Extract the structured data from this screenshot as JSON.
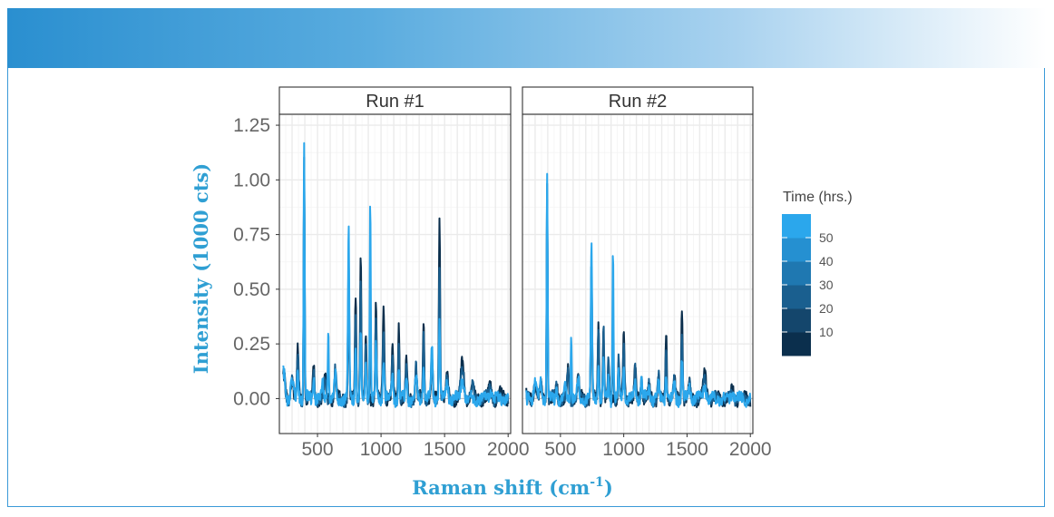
{
  "chart_data": {
    "type": "line",
    "title": "",
    "xlabel_main": "Raman shift (cm",
    "xlabel_sup": "-1",
    "xlabel_close": ")",
    "ylabel": "Intensity (1000 cts)",
    "xlim": [
      200,
      2020
    ],
    "ylim": [
      -0.16,
      1.3
    ],
    "x_ticks": [
      500,
      1000,
      1500,
      2000
    ],
    "x_tick_labels": [
      "500",
      "1000",
      "1500",
      "2000"
    ],
    "y_ticks": [
      0.0,
      0.25,
      0.5,
      0.75,
      1.0,
      1.25
    ],
    "y_tick_labels": [
      "0.00",
      "0.25",
      "0.50",
      "0.75",
      "1.00",
      "1.25"
    ],
    "legend": {
      "title": "Time (hrs.)",
      "placement": "right",
      "range": [
        0,
        60
      ],
      "breaks": [
        10,
        20,
        30,
        40,
        50
      ],
      "break_labels": [
        "10",
        "20",
        "30",
        "40",
        "50"
      ],
      "colors": [
        "#0b2f4d",
        "#14466c",
        "#1a5f8f",
        "#1f78b1",
        "#2590d1",
        "#2ba7ec"
      ]
    },
    "panels": [
      {
        "name": "Run #1",
        "series": [
          {
            "time": 5,
            "color": "#0b2f4d",
            "peaks": [
              [
                235,
                0.18,
                8
              ],
              [
                300,
                0.1,
                10
              ],
              [
                345,
                0.22,
                6
              ],
              [
                395,
                1.05,
                4
              ],
              [
                470,
                0.15,
                6
              ],
              [
                560,
                0.1,
                7
              ],
              [
                640,
                0.14,
                7
              ],
              [
                745,
                0.55,
                5
              ],
              [
                800,
                0.47,
                5
              ],
              [
                840,
                0.66,
                5
              ],
              [
                880,
                0.28,
                5
              ],
              [
                960,
                0.45,
                5
              ],
              [
                1020,
                0.43,
                6
              ],
              [
                1090,
                0.22,
                6
              ],
              [
                1140,
                0.34,
                5
              ],
              [
                1200,
                0.18,
                6
              ],
              [
                1275,
                0.15,
                6
              ],
              [
                1335,
                0.37,
                5
              ],
              [
                1400,
                0.14,
                6
              ],
              [
                1460,
                0.82,
                5
              ],
              [
                1520,
                0.1,
                8
              ],
              [
                1640,
                0.16,
                12
              ],
              [
                1720,
                0.05,
                10
              ],
              [
                1860,
                0.06,
                10
              ],
              [
                1940,
                0.03,
                10
              ]
            ]
          },
          {
            "time": 25,
            "color": "#1a5f8f",
            "peaks": [
              [
                235,
                0.17,
                8
              ],
              [
                300,
                0.09,
                10
              ],
              [
                345,
                0.18,
                6
              ],
              [
                395,
                1.1,
                4
              ],
              [
                470,
                0.14,
                6
              ],
              [
                560,
                0.09,
                7
              ],
              [
                640,
                0.13,
                7
              ],
              [
                745,
                0.62,
                5
              ],
              [
                800,
                0.4,
                5
              ],
              [
                840,
                0.52,
                5
              ],
              [
                880,
                0.24,
                5
              ],
              [
                915,
                0.4,
                4
              ],
              [
                960,
                0.36,
                5
              ],
              [
                1020,
                0.32,
                6
              ],
              [
                1090,
                0.18,
                6
              ],
              [
                1140,
                0.26,
                5
              ],
              [
                1200,
                0.15,
                6
              ],
              [
                1275,
                0.14,
                6
              ],
              [
                1335,
                0.3,
                5
              ],
              [
                1400,
                0.2,
                6
              ],
              [
                1460,
                0.62,
                5
              ],
              [
                1520,
                0.09,
                8
              ],
              [
                1640,
                0.14,
                12
              ],
              [
                1720,
                0.05,
                10
              ],
              [
                1860,
                0.05,
                10
              ]
            ]
          },
          {
            "time": 55,
            "color": "#2ba7ec",
            "peaks": [
              [
                235,
                0.21,
                8
              ],
              [
                300,
                0.08,
                10
              ],
              [
                345,
                0.12,
                6
              ],
              [
                395,
                1.19,
                4
              ],
              [
                470,
                0.1,
                6
              ],
              [
                540,
                0.06,
                7
              ],
              [
                585,
                0.33,
                4
              ],
              [
                640,
                0.11,
                7
              ],
              [
                745,
                0.77,
                5
              ],
              [
                800,
                0.24,
                5
              ],
              [
                840,
                0.3,
                5
              ],
              [
                880,
                0.16,
                5
              ],
              [
                915,
                0.92,
                4
              ],
              [
                960,
                0.25,
                5
              ],
              [
                1020,
                0.18,
                6
              ],
              [
                1090,
                0.12,
                6
              ],
              [
                1140,
                0.14,
                5
              ],
              [
                1200,
                0.1,
                6
              ],
              [
                1275,
                0.1,
                6
              ],
              [
                1335,
                0.14,
                5
              ],
              [
                1400,
                0.24,
                6
              ],
              [
                1460,
                0.35,
                5
              ],
              [
                1520,
                0.08,
                8
              ],
              [
                1640,
                0.09,
                12
              ],
              [
                1860,
                0.04,
                10
              ]
            ]
          }
        ]
      },
      {
        "name": "Run #2",
        "series": [
          {
            "time": 5,
            "color": "#0b2f4d",
            "peaks": [
              [
                235,
                0.05,
                8
              ],
              [
                300,
                0.07,
                10
              ],
              [
                345,
                0.06,
                6
              ],
              [
                395,
                0.92,
                4
              ],
              [
                470,
                0.06,
                6
              ],
              [
                560,
                0.12,
                7
              ],
              [
                640,
                0.1,
                7
              ],
              [
                745,
                0.6,
                5
              ],
              [
                800,
                0.33,
                5
              ],
              [
                840,
                0.3,
                5
              ],
              [
                880,
                0.16,
                5
              ],
              [
                960,
                0.17,
                5
              ],
              [
                1000,
                0.28,
                6
              ],
              [
                1090,
                0.14,
                6
              ],
              [
                1140,
                0.11,
                5
              ],
              [
                1200,
                0.06,
                6
              ],
              [
                1275,
                0.12,
                6
              ],
              [
                1335,
                0.29,
                5
              ],
              [
                1400,
                0.1,
                6
              ],
              [
                1460,
                0.43,
                5
              ],
              [
                1520,
                0.06,
                8
              ],
              [
                1640,
                0.11,
                12
              ],
              [
                1860,
                0.04,
                10
              ]
            ]
          },
          {
            "time": 25,
            "color": "#1a5f8f",
            "peaks": [
              [
                235,
                0.06,
                8
              ],
              [
                300,
                0.07,
                10
              ],
              [
                345,
                0.07,
                6
              ],
              [
                395,
                0.98,
                4
              ],
              [
                470,
                0.07,
                6
              ],
              [
                560,
                0.11,
                7
              ],
              [
                640,
                0.1,
                7
              ],
              [
                745,
                0.62,
                5
              ],
              [
                800,
                0.35,
                5
              ],
              [
                840,
                0.33,
                5
              ],
              [
                880,
                0.18,
                5
              ],
              [
                915,
                0.4,
                4
              ],
              [
                960,
                0.19,
                5
              ],
              [
                1000,
                0.24,
                6
              ],
              [
                1090,
                0.13,
                6
              ],
              [
                1140,
                0.1,
                5
              ],
              [
                1200,
                0.06,
                6
              ],
              [
                1275,
                0.1,
                6
              ],
              [
                1335,
                0.24,
                5
              ],
              [
                1400,
                0.09,
                6
              ],
              [
                1460,
                0.3,
                5
              ],
              [
                1520,
                0.06,
                8
              ],
              [
                1640,
                0.09,
                12
              ],
              [
                1860,
                0.04,
                10
              ]
            ]
          },
          {
            "time": 55,
            "color": "#2ba7ec",
            "peaks": [
              [
                235,
                0.08,
                8
              ],
              [
                300,
                0.06,
                10
              ],
              [
                345,
                0.09,
                6
              ],
              [
                395,
                1.05,
                4
              ],
              [
                470,
                0.06,
                6
              ],
              [
                540,
                0.05,
                7
              ],
              [
                585,
                0.29,
                4
              ],
              [
                640,
                0.08,
                7
              ],
              [
                745,
                0.7,
                5
              ],
              [
                800,
                0.18,
                5
              ],
              [
                840,
                0.17,
                5
              ],
              [
                880,
                0.1,
                5
              ],
              [
                915,
                0.69,
                4
              ],
              [
                960,
                0.12,
                5
              ],
              [
                1000,
                0.14,
                6
              ],
              [
                1090,
                0.08,
                6
              ],
              [
                1140,
                0.08,
                5
              ],
              [
                1200,
                0.05,
                6
              ],
              [
                1275,
                0.07,
                6
              ],
              [
                1335,
                0.12,
                5
              ],
              [
                1400,
                0.06,
                6
              ],
              [
                1460,
                0.18,
                5
              ],
              [
                1520,
                0.05,
                8
              ],
              [
                1640,
                0.06,
                12
              ],
              [
                1860,
                0.03,
                10
              ]
            ]
          }
        ]
      }
    ]
  }
}
